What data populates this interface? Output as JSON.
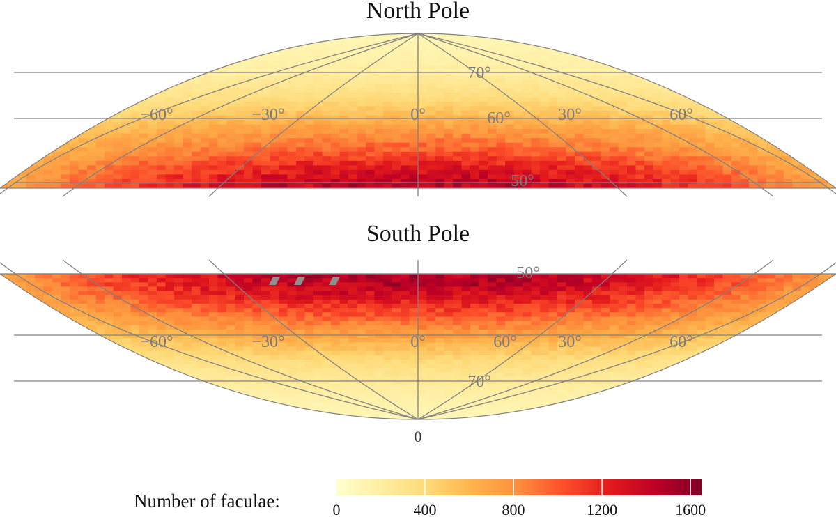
{
  "chart_data": {
    "type": "heatmap",
    "projection": "Hammer-Aitoff (polar cap)",
    "colormap": "YlOrRd",
    "panels": [
      {
        "title": "North Pole",
        "hemisphere": "north",
        "lat_range": [
          47,
          90
        ],
        "lat_gridlines": [
          50,
          60,
          70
        ],
        "lon_labels": [
          "−60°",
          "−30°",
          "0°",
          "30°",
          "60°"
        ],
        "lat_labels": [
          "70°",
          "60°",
          "50°"
        ],
        "density_by_latitude": [
          {
            "lat": 48,
            "count": 1450
          },
          {
            "lat": 52,
            "count": 1350
          },
          {
            "lat": 56,
            "count": 1200
          },
          {
            "lat": 60,
            "count": 1000
          },
          {
            "lat": 65,
            "count": 800
          },
          {
            "lat": 70,
            "count": 550
          },
          {
            "lat": 75,
            "count": 350
          },
          {
            "lat": 82,
            "count": 180
          },
          {
            "lat": 90,
            "count": 100
          }
        ]
      },
      {
        "title": "South Pole",
        "hemisphere": "south",
        "lat_range": [
          47,
          90
        ],
        "lat_gridlines": [
          50,
          60,
          70
        ],
        "lon_labels": [
          "−60°",
          "−30°",
          "0°",
          "60°",
          "30°",
          "60°"
        ],
        "lat_labels": [
          "50°",
          "70°"
        ],
        "density_by_latitude": [
          {
            "lat": 48,
            "count": 1500
          },
          {
            "lat": 52,
            "count": 1450
          },
          {
            "lat": 56,
            "count": 1300
          },
          {
            "lat": 60,
            "count": 1100
          },
          {
            "lat": 65,
            "count": 850
          },
          {
            "lat": 70,
            "count": 600
          },
          {
            "lat": 75,
            "count": 380
          },
          {
            "lat": 82,
            "count": 200
          },
          {
            "lat": 90,
            "count": 100
          }
        ]
      }
    ],
    "bottom_label": "0",
    "colorbar": {
      "label": "Number of faculae:",
      "range": [
        0,
        1650
      ],
      "ticks": [
        0,
        400,
        800,
        1200,
        1600
      ],
      "tick_labels": [
        "0",
        "400",
        "800",
        "1200",
        "1600"
      ]
    },
    "grid_color": "#808080"
  }
}
